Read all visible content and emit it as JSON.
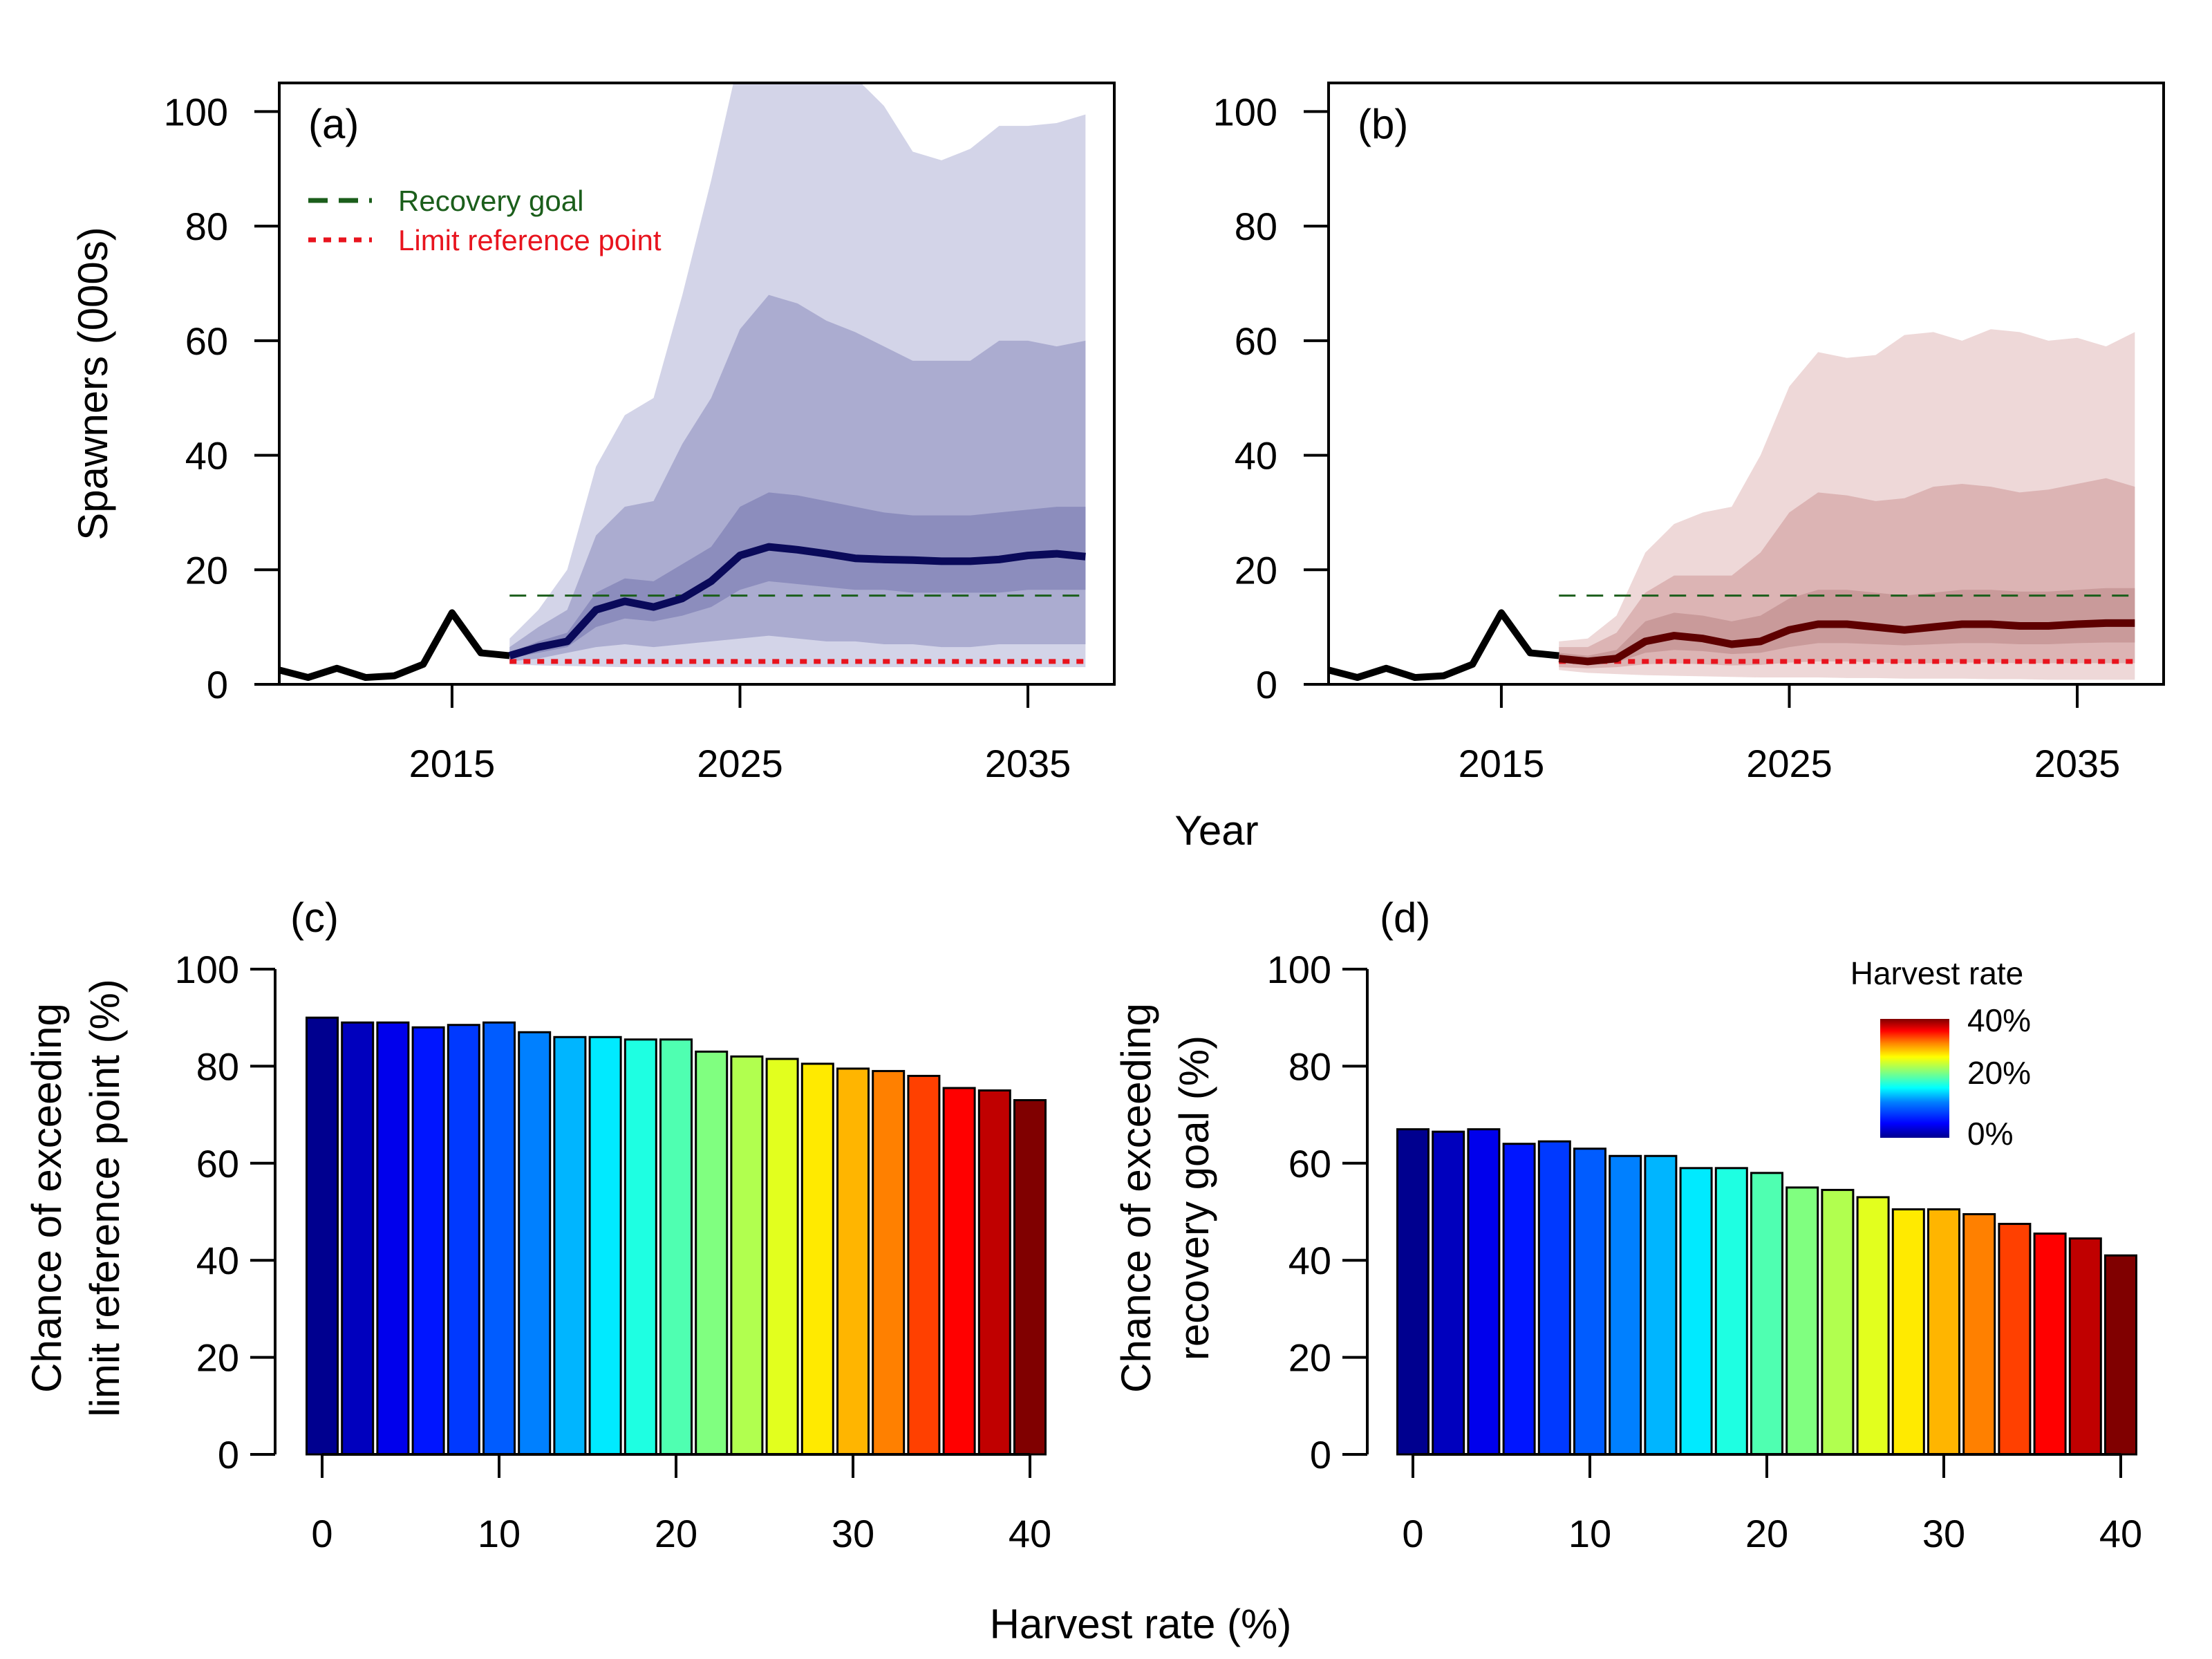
{
  "figure": {
    "shared_xlabel_top": "Year",
    "shared_xlabel_bottom": "Harvest rate (%)"
  },
  "legend": {
    "recovery_goal": "Recovery goal",
    "limit_reference_point": "Limit reference point"
  },
  "colorbar": {
    "title": "Harvest rate",
    "labels": [
      "40%",
      "20%",
      "0%"
    ]
  },
  "colors": {
    "blue_median": "#0a0a5a",
    "blue_band_outer": "#d3d4e8",
    "blue_band_mid": "#abacd0",
    "blue_band_inner": "#8c8dbd",
    "red_median": "#5e0000",
    "red_band_outer": "#eed8d8",
    "red_band_mid": "#dcb4b4",
    "red_band_inner": "#c99a9a",
    "recovery_goal": "#1b5e1b",
    "limit_reference": "#e8141e",
    "observed": "#000000"
  },
  "chart_data": [
    {
      "panel": "(a)",
      "type": "line",
      "title": "",
      "xlabel": "Year",
      "ylabel": "Spawners (000s)",
      "xlim": [
        2009,
        2038
      ],
      "ylim": [
        0,
        105
      ],
      "xticks": [
        2015,
        2025,
        2035
      ],
      "yticks": [
        0,
        20,
        40,
        60,
        80,
        100
      ],
      "observed": {
        "x": [
          2009,
          2010,
          2011,
          2012,
          2013,
          2014,
          2015,
          2016,
          2017
        ],
        "y": [
          2.5,
          1.2,
          2.8,
          1.2,
          1.5,
          3.5,
          12.5,
          5.5,
          5.0
        ]
      },
      "projection": {
        "x": [
          2017,
          2018,
          2019,
          2020,
          2021,
          2022,
          2023,
          2024,
          2025,
          2026,
          2027,
          2028,
          2029,
          2030,
          2031,
          2032,
          2033,
          2034,
          2035,
          2036,
          2037
        ],
        "median": [
          5.0,
          6.5,
          7.5,
          13,
          14.5,
          13.5,
          15,
          18,
          22.5,
          24,
          23.5,
          22.8,
          22,
          21.8,
          21.7,
          21.5,
          21.5,
          21.8,
          22.5,
          22.8,
          22.3
        ],
        "band_outer_low": [
          3.5,
          3.3,
          3.2,
          3.1,
          3.0,
          3.0,
          3.0,
          3.0,
          3.0,
          3.0,
          3.0,
          3.0,
          3.0,
          3.0,
          3.0,
          3.0,
          3.0,
          3.0,
          3.0,
          3.0,
          3.0
        ],
        "band_outer_high": [
          8,
          13,
          20,
          38,
          47,
          50,
          68,
          88,
          110,
          118,
          115,
          112,
          106,
          101,
          93,
          91.5,
          93.5,
          97.5,
          97.5,
          98,
          99.5
        ],
        "band_mid_low": [
          4.0,
          4.5,
          5.5,
          6.5,
          7.0,
          6.5,
          7.0,
          7.5,
          8.0,
          8.5,
          8.0,
          7.5,
          7.5,
          7.0,
          7.0,
          6.5,
          6.5,
          7.0,
          7.0,
          7.0,
          7.0
        ],
        "band_mid_high": [
          6.5,
          10,
          13,
          26,
          31,
          32,
          42,
          50,
          62,
          68,
          66.5,
          63.5,
          61.5,
          59,
          56.5,
          56.5,
          56.5,
          60,
          60,
          59,
          60
        ],
        "band_inner_low": [
          4.5,
          5.5,
          6.5,
          10,
          11.5,
          11,
          12,
          13.5,
          16.5,
          18,
          17.5,
          17,
          16.5,
          16.5,
          16,
          16,
          16,
          16,
          16.5,
          16.5,
          16.5
        ],
        "band_inner_high": [
          5.5,
          7.5,
          9,
          16,
          18.5,
          18,
          21,
          24,
          31,
          33.5,
          33,
          32,
          31,
          30,
          29.5,
          29.5,
          29.5,
          30,
          30.5,
          31,
          31
        ]
      },
      "recovery_goal": 15.5,
      "limit_reference_point": 4.0
    },
    {
      "panel": "(b)",
      "type": "line",
      "title": "",
      "xlabel": "Year",
      "ylabel": "",
      "xlim": [
        2009,
        2038
      ],
      "ylim": [
        0,
        105
      ],
      "xticks": [
        2015,
        2025,
        2035
      ],
      "yticks": [
        0,
        20,
        40,
        60,
        80,
        100
      ],
      "observed": {
        "x": [
          2009,
          2010,
          2011,
          2012,
          2013,
          2014,
          2015,
          2016,
          2017
        ],
        "y": [
          2.5,
          1.2,
          2.8,
          1.2,
          1.5,
          3.5,
          12.5,
          5.5,
          5.0
        ]
      },
      "projection": {
        "x": [
          2017,
          2018,
          2019,
          2020,
          2021,
          2022,
          2023,
          2024,
          2025,
          2026,
          2027,
          2028,
          2029,
          2030,
          2031,
          2032,
          2033,
          2034,
          2035,
          2036,
          2037
        ],
        "median": [
          4.5,
          4.0,
          4.5,
          7.5,
          8.5,
          8.0,
          7.0,
          7.5,
          9.5,
          10.5,
          10.5,
          10.0,
          9.5,
          10.0,
          10.5,
          10.5,
          10.2,
          10.2,
          10.5,
          10.7,
          10.7
        ],
        "band_outer_low": [
          2.5,
          2.0,
          1.8,
          1.6,
          1.5,
          1.4,
          1.3,
          1.2,
          1.2,
          1.2,
          1.1,
          1.1,
          1.0,
          1.0,
          1.0,
          0.9,
          0.9,
          0.8,
          0.8,
          0.8,
          0.8
        ],
        "band_outer_high": [
          7.5,
          8,
          12,
          23,
          28,
          30,
          31,
          40,
          52,
          58,
          57,
          57.5,
          61,
          61.5,
          60,
          62,
          61.5,
          60,
          60.5,
          59,
          61.5
        ],
        "band_mid_low": [
          3.0,
          2.8,
          3.0,
          3.5,
          3.7,
          3.5,
          3.3,
          3.4,
          3.8,
          4.0,
          4.0,
          3.8,
          3.7,
          3.7,
          3.8,
          3.8,
          3.7,
          3.7,
          3.7,
          3.7,
          3.7
        ],
        "band_mid_high": [
          6.5,
          6.5,
          9,
          16,
          19,
          19,
          19,
          23,
          30,
          33.5,
          33,
          32,
          32.5,
          34.5,
          35,
          34.5,
          33.5,
          34,
          35,
          36,
          34.5
        ],
        "band_inner_low": [
          3.8,
          3.5,
          3.8,
          5.5,
          6.0,
          5.8,
          5.3,
          5.5,
          6.5,
          7.2,
          7.2,
          7.0,
          6.8,
          7.0,
          7.2,
          7.2,
          7.0,
          7.0,
          7.2,
          7.3,
          7.3
        ],
        "band_inner_high": [
          5.5,
          5.0,
          6.0,
          11,
          12.5,
          12,
          11,
          12,
          15,
          16.5,
          16.5,
          16,
          15.5,
          16,
          16.5,
          16.5,
          16.2,
          16.2,
          16.5,
          16.8,
          16.8
        ]
      },
      "recovery_goal": 15.5,
      "limit_reference_point": 4.0
    },
    {
      "panel": "(c)",
      "type": "bar",
      "title": "",
      "xlabel": "Harvest rate (%)",
      "ylabel_lines": [
        "Chance of exceeding",
        "limit reference point (%)"
      ],
      "x": [
        0,
        2,
        4,
        6,
        8,
        10,
        12,
        14,
        16,
        18,
        20,
        22,
        24,
        26,
        28,
        30,
        32,
        34,
        36,
        38,
        40
      ],
      "values": [
        90,
        89,
        89,
        88,
        88.5,
        89,
        87,
        86,
        86,
        85.5,
        85.5,
        83,
        82,
        81.5,
        80.5,
        79.5,
        79,
        78,
        75.5,
        75,
        73
      ],
      "xticks": [
        0,
        10,
        20,
        30,
        40
      ],
      "yticks": [
        0,
        20,
        40,
        60,
        80,
        100
      ],
      "ylim": [
        0,
        100
      ]
    },
    {
      "panel": "(d)",
      "type": "bar",
      "title": "",
      "xlabel": "Harvest rate (%)",
      "ylabel_lines": [
        "Chance of exceeding",
        "recovery goal (%)"
      ],
      "x": [
        0,
        2,
        4,
        6,
        8,
        10,
        12,
        14,
        16,
        18,
        20,
        22,
        24,
        26,
        28,
        30,
        32,
        34,
        36,
        38,
        40
      ],
      "values": [
        67,
        66.5,
        67,
        64,
        64.5,
        63,
        61.5,
        61.5,
        59,
        59,
        58,
        55,
        54.5,
        53,
        50.5,
        50.5,
        49.5,
        47.5,
        45.5,
        44.5,
        41
      ],
      "xticks": [
        0,
        10,
        20,
        30,
        40
      ],
      "yticks": [
        0,
        20,
        40,
        60,
        80,
        100
      ],
      "ylim": [
        0,
        100
      ]
    }
  ]
}
